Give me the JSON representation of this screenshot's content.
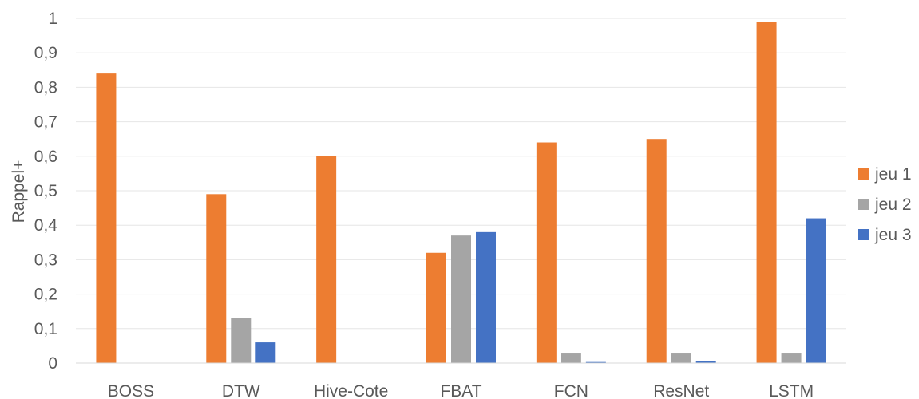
{
  "chart_data": {
    "type": "bar",
    "categories": [
      "BOSS",
      "DTW",
      "Hive-Cote",
      "FBAT",
      "FCN",
      "ResNet",
      "LSTM"
    ],
    "series": [
      {
        "name": "jeu 1",
        "color": "#ED7D31",
        "values": [
          0.84,
          0.49,
          0.6,
          0.32,
          0.64,
          0.65,
          0.99
        ]
      },
      {
        "name": "jeu 2",
        "color": "#A5A5A5",
        "values": [
          0,
          0.13,
          0,
          0.37,
          0.03,
          0.03,
          0.03
        ]
      },
      {
        "name": "jeu 3",
        "color": "#4472C4",
        "values": [
          0,
          0.06,
          0,
          0.38,
          0.003,
          0.005,
          0.42
        ]
      }
    ],
    "ylabel": "Rappel+",
    "xlabel": "",
    "ylim": [
      0,
      1
    ],
    "yticks": [
      "0",
      "0,1",
      "0,2",
      "0,3",
      "0,4",
      "0,5",
      "0,6",
      "0,7",
      "0,8",
      "0,9",
      "1"
    ],
    "grid": true,
    "legend_position": "right"
  }
}
